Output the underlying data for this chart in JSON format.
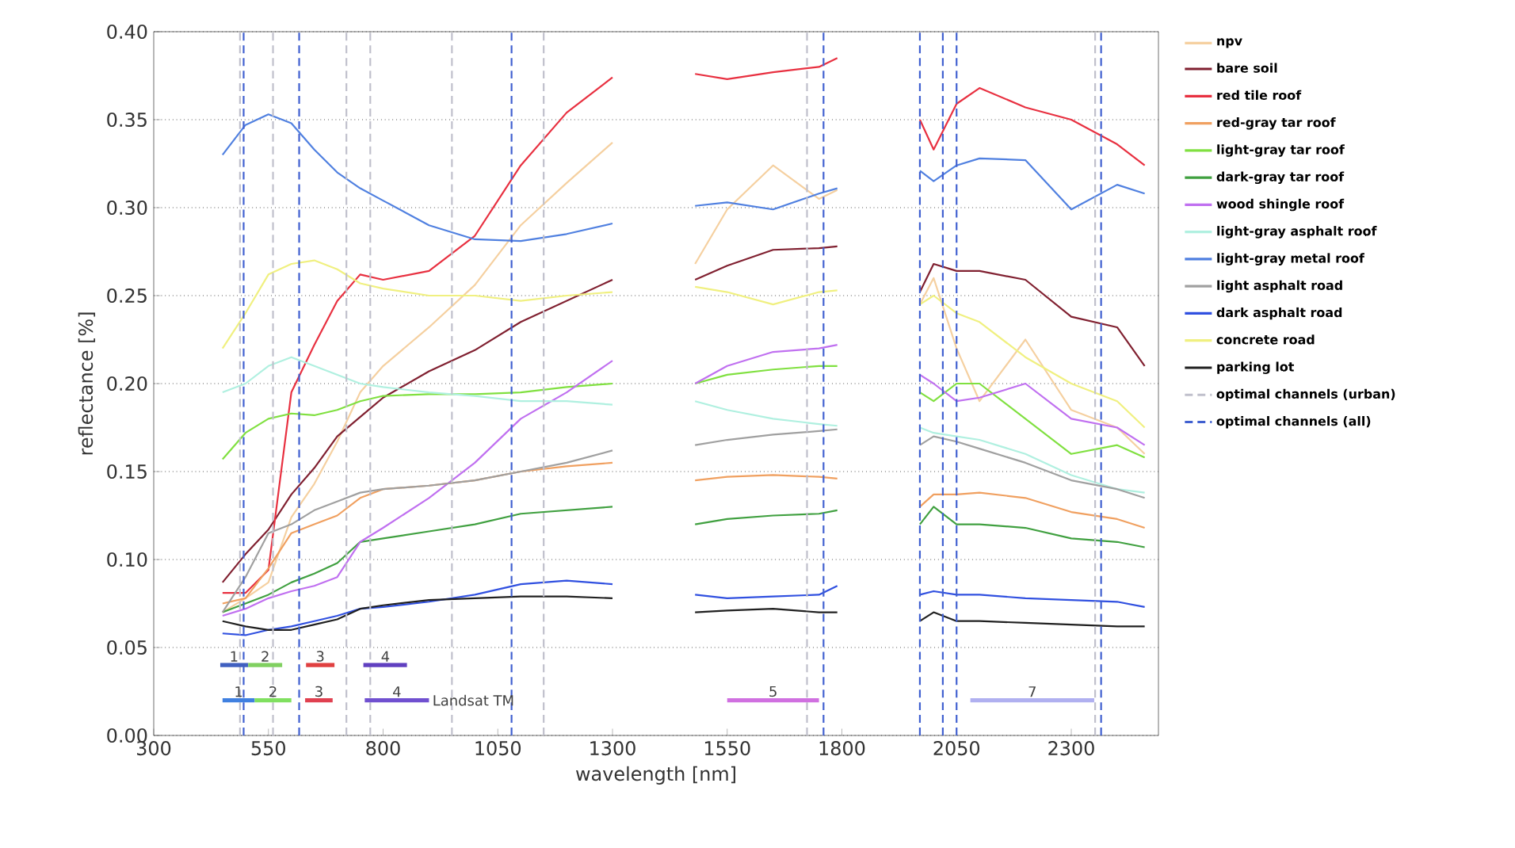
{
  "chart_data": {
    "type": "line",
    "xlabel": "wavelength [nm]",
    "ylabel": "reflectance [%]",
    "xlim": [
      300,
      2490
    ],
    "ylim": [
      0,
      0.4
    ],
    "xticks": [
      300,
      550,
      800,
      1050,
      1300,
      1550,
      1800,
      2050,
      2300
    ],
    "yticks": [
      {
        "value": 0,
        "label": "0.00"
      },
      {
        "value": 0.05,
        "label": "0.05"
      },
      {
        "value": 0.1,
        "label": "0.10"
      },
      {
        "value": 0.15,
        "label": "0.15"
      },
      {
        "value": 0.2,
        "label": "0.20"
      },
      {
        "value": 0.25,
        "label": "0.25"
      },
      {
        "value": 0.3,
        "label": "0.30"
      },
      {
        "value": 0.35,
        "label": "0.35"
      },
      {
        "value": 0.4,
        "label": "0.40"
      }
    ],
    "grid": "y",
    "legend": "right",
    "marker": "none",
    "x": [
      450,
      500,
      550,
      600,
      650,
      700,
      750,
      800,
      900,
      1000,
      1100,
      1200,
      1300,
      1400,
      1480,
      1550,
      1650,
      1750,
      1790,
      1900,
      1970,
      2000,
      2050,
      2100,
      2200,
      2300,
      2400,
      2460
    ],
    "series": [
      {
        "name": "npv",
        "color": "#f5d0a0",
        "values": [
          0.07,
          0.078,
          0.087,
          0.124,
          0.143,
          0.167,
          0.195,
          0.21,
          0.232,
          0.256,
          0.29,
          0.314,
          0.337,
          null,
          0.268,
          0.299,
          0.324,
          0.305,
          0.31,
          null,
          0.245,
          0.26,
          0.22,
          0.19,
          0.225,
          0.185,
          0.175,
          0.16
        ]
      },
      {
        "name": "bare soil",
        "color": "#802030",
        "values": [
          0.087,
          0.103,
          0.117,
          0.137,
          0.152,
          0.17,
          0.181,
          0.192,
          0.207,
          0.219,
          0.235,
          0.247,
          0.259,
          null,
          0.259,
          0.267,
          0.276,
          0.277,
          0.278,
          null,
          0.252,
          0.268,
          0.264,
          0.264,
          0.259,
          0.238,
          0.232,
          0.21
        ]
      },
      {
        "name": "red tile roof",
        "color": "#e83040",
        "values": [
          0.081,
          0.081,
          0.094,
          0.195,
          0.222,
          0.247,
          0.262,
          0.259,
          0.264,
          0.284,
          0.324,
          0.354,
          0.374,
          null,
          0.376,
          0.373,
          0.377,
          0.38,
          0.385,
          null,
          0.35,
          0.333,
          0.359,
          0.368,
          0.357,
          0.35,
          0.336,
          0.324
        ]
      },
      {
        "name": "red-gray tar roof",
        "color": "#f0a060",
        "values": [
          0.075,
          0.078,
          0.095,
          0.115,
          0.12,
          0.125,
          0.135,
          0.14,
          0.142,
          0.145,
          0.15,
          0.153,
          0.155,
          null,
          0.145,
          0.147,
          0.148,
          0.147,
          0.146,
          null,
          0.13,
          0.137,
          0.137,
          0.138,
          0.135,
          0.127,
          0.123,
          0.118
        ]
      },
      {
        "name": "light-gray tar roof",
        "color": "#80e040",
        "values": [
          0.157,
          0.172,
          0.18,
          0.183,
          0.182,
          0.185,
          0.19,
          0.193,
          0.194,
          0.194,
          0.195,
          0.198,
          0.2,
          null,
          0.2,
          0.205,
          0.208,
          0.21,
          0.21,
          null,
          0.195,
          0.19,
          0.2,
          0.2,
          0.18,
          0.16,
          0.165,
          0.158
        ]
      },
      {
        "name": "dark-gray tar roof",
        "color": "#40a040",
        "values": [
          0.07,
          0.075,
          0.08,
          0.087,
          0.092,
          0.098,
          0.11,
          0.112,
          0.116,
          0.12,
          0.126,
          0.128,
          0.13,
          null,
          0.12,
          0.123,
          0.125,
          0.126,
          0.128,
          null,
          0.12,
          0.13,
          0.12,
          0.12,
          0.118,
          0.112,
          0.11,
          0.107
        ]
      },
      {
        "name": "wood shingle roof",
        "color": "#c070f0",
        "values": [
          0.068,
          0.072,
          0.078,
          0.082,
          0.085,
          0.09,
          0.11,
          0.118,
          0.135,
          0.155,
          0.18,
          0.195,
          0.213,
          null,
          0.2,
          0.21,
          0.218,
          0.22,
          0.222,
          null,
          0.205,
          0.2,
          0.19,
          0.192,
          0.2,
          0.18,
          0.175,
          0.165
        ]
      },
      {
        "name": "light-gray asphalt roof",
        "color": "#b0f0e0",
        "values": [
          0.195,
          0.2,
          0.21,
          0.215,
          0.21,
          0.205,
          0.2,
          0.198,
          0.195,
          0.193,
          0.19,
          0.19,
          0.188,
          null,
          0.19,
          0.185,
          0.18,
          0.177,
          0.176,
          null,
          0.175,
          0.172,
          0.17,
          0.168,
          0.16,
          0.148,
          0.14,
          0.138
        ]
      },
      {
        "name": "light-gray metal roof",
        "color": "#5080e0",
        "values": [
          0.33,
          0.347,
          0.353,
          0.348,
          0.333,
          0.32,
          0.311,
          0.304,
          0.29,
          0.282,
          0.281,
          0.285,
          0.291,
          null,
          0.301,
          0.303,
          0.299,
          0.308,
          0.311,
          null,
          0.321,
          0.315,
          0.324,
          0.328,
          0.327,
          0.299,
          0.313,
          0.308
        ]
      },
      {
        "name": "light asphalt road",
        "color": "#a0a0a0",
        "values": [
          0.07,
          0.09,
          0.115,
          0.12,
          0.128,
          0.133,
          0.138,
          0.14,
          0.142,
          0.145,
          0.15,
          0.155,
          0.162,
          null,
          0.165,
          0.168,
          0.171,
          0.173,
          0.174,
          null,
          0.165,
          0.17,
          0.167,
          0.163,
          0.155,
          0.145,
          0.14,
          0.135
        ]
      },
      {
        "name": "dark asphalt road",
        "color": "#3050e0",
        "values": [
          0.058,
          0.057,
          0.06,
          0.062,
          0.065,
          0.068,
          0.072,
          0.073,
          0.076,
          0.08,
          0.086,
          0.088,
          0.086,
          null,
          0.08,
          0.078,
          0.079,
          0.08,
          0.085,
          null,
          0.08,
          0.082,
          0.08,
          0.08,
          0.078,
          0.077,
          0.076,
          0.073
        ]
      },
      {
        "name": "concrete road",
        "color": "#f0f080",
        "values": [
          0.22,
          0.24,
          0.262,
          0.268,
          0.27,
          0.265,
          0.257,
          0.254,
          0.25,
          0.25,
          0.247,
          0.25,
          0.252,
          null,
          0.255,
          0.252,
          0.245,
          0.252,
          0.253,
          null,
          0.245,
          0.25,
          0.24,
          0.235,
          0.215,
          0.2,
          0.19,
          0.175
        ]
      },
      {
        "name": "parking lot",
        "color": "#202020",
        "values": [
          0.065,
          0.062,
          0.06,
          0.06,
          0.063,
          0.066,
          0.072,
          0.074,
          0.077,
          0.078,
          0.079,
          0.079,
          0.078,
          null,
          0.07,
          0.071,
          0.072,
          0.07,
          0.07,
          null,
          0.065,
          0.07,
          0.065,
          0.065,
          0.064,
          0.063,
          0.062,
          0.062
        ]
      },
      {
        "name": "optimal channels (urban)",
        "color": "#c0c0cc",
        "line_style": "dashed",
        "x": [
          488,
          488
        ],
        "values": [
          0,
          0.4
        ]
      },
      {
        "color": "#c0c0cc",
        "line_style": "dashed",
        "x": [
          560,
          560
        ],
        "values": [
          0,
          0.4
        ]
      },
      {
        "color": "#c0c0cc",
        "line_style": "dashed",
        "x": [
          720,
          720
        ],
        "values": [
          0,
          0.4
        ]
      },
      {
        "color": "#c0c0cc",
        "line_style": "dashed",
        "x": [
          772,
          772
        ],
        "values": [
          0,
          0.4
        ]
      },
      {
        "color": "#c0c0cc",
        "line_style": "dashed",
        "x": [
          950,
          950
        ],
        "values": [
          0,
          0.4
        ]
      },
      {
        "color": "#c0c0cc",
        "line_style": "dashed",
        "x": [
          1150,
          1150
        ],
        "values": [
          0,
          0.4
        ]
      },
      {
        "color": "#c0c0cc",
        "line_style": "dashed",
        "x": [
          1724,
          1724
        ],
        "values": [
          0,
          0.4
        ]
      },
      {
        "color": "#c0c0cc",
        "line_style": "dashed",
        "x": [
          2352,
          2352
        ],
        "values": [
          0,
          0.4
        ]
      },
      {
        "name": "optimal channels (all)",
        "color": "#4060d0",
        "line_style": "dashed",
        "x": [
          496,
          496
        ],
        "values": [
          0,
          0.4
        ]
      },
      {
        "color": "#4060d0",
        "line_style": "dashed",
        "x": [
          617,
          617
        ],
        "values": [
          0,
          0.4
        ]
      },
      {
        "color": "#4060d0",
        "line_style": "dashed",
        "x": [
          1080,
          1080
        ],
        "values": [
          0,
          0.4
        ]
      },
      {
        "color": "#4060d0",
        "line_style": "dashed",
        "x": [
          1760,
          1760
        ],
        "values": [
          0,
          0.4
        ]
      },
      {
        "color": "#4060d0",
        "line_style": "dashed",
        "x": [
          1970,
          1970
        ],
        "values": [
          0,
          0.4
        ]
      },
      {
        "color": "#4060d0",
        "line_style": "dashed",
        "x": [
          2020,
          2020
        ],
        "values": [
          0,
          0.4
        ]
      },
      {
        "color": "#4060d0",
        "line_style": "dashed",
        "x": [
          2050,
          2050
        ],
        "values": [
          0,
          0.4
        ]
      },
      {
        "color": "#4060d0",
        "line_style": "dashed",
        "x": [
          2365,
          2365
        ],
        "values": [
          0,
          0.4
        ]
      },
      {
        "color": "#4060c0",
        "x": [
          445,
          506
        ],
        "values": [
          0.04,
          0.04
        ]
      },
      {
        "color": "#80d060",
        "x": [
          506,
          580
        ],
        "values": [
          0.04,
          0.04
        ]
      },
      {
        "color": "#e04040",
        "x": [
          632,
          694
        ],
        "values": [
          0.04,
          0.04
        ]
      },
      {
        "color": "#6040c0",
        "x": [
          757,
          852
        ],
        "values": [
          0.04,
          0.04
        ]
      },
      {
        "color": "#4080e0",
        "x": [
          450,
          520
        ],
        "values": [
          0.02,
          0.02
        ]
      },
      {
        "color": "#80e060",
        "x": [
          520,
          600
        ],
        "values": [
          0.02,
          0.02
        ]
      },
      {
        "color": "#e04050",
        "x": [
          630,
          690
        ],
        "values": [
          0.02,
          0.02
        ]
      },
      {
        "color": "#7050d0",
        "x": [
          760,
          900
        ],
        "values": [
          0.02,
          0.02
        ]
      },
      {
        "color": "#d070e0",
        "x": [
          1550,
          1750
        ],
        "values": [
          0.02,
          0.02
        ]
      },
      {
        "color": "#b0b0f0",
        "x": [
          2080,
          2350
        ],
        "values": [
          0.02,
          0.02
        ]
      }
    ],
    "annotations": [
      {
        "text": "1",
        "x": 475,
        "y": 0.04
      },
      {
        "text": "2",
        "x": 543,
        "y": 0.04
      },
      {
        "text": "3",
        "x": 663,
        "y": 0.04
      },
      {
        "text": "4",
        "x": 805,
        "y": 0.04
      },
      {
        "text": "1",
        "x": 485,
        "y": 0.02
      },
      {
        "text": "2",
        "x": 560,
        "y": 0.02
      },
      {
        "text": "3",
        "x": 660,
        "y": 0.02
      },
      {
        "text": "4",
        "x": 830,
        "y": 0.02
      },
      {
        "text": "5",
        "x": 1650,
        "y": 0.02
      },
      {
        "text": "7",
        "x": 2215,
        "y": 0.02
      },
      {
        "text": "Landsat TM",
        "x": 900,
        "y": 0.02
      }
    ]
  }
}
